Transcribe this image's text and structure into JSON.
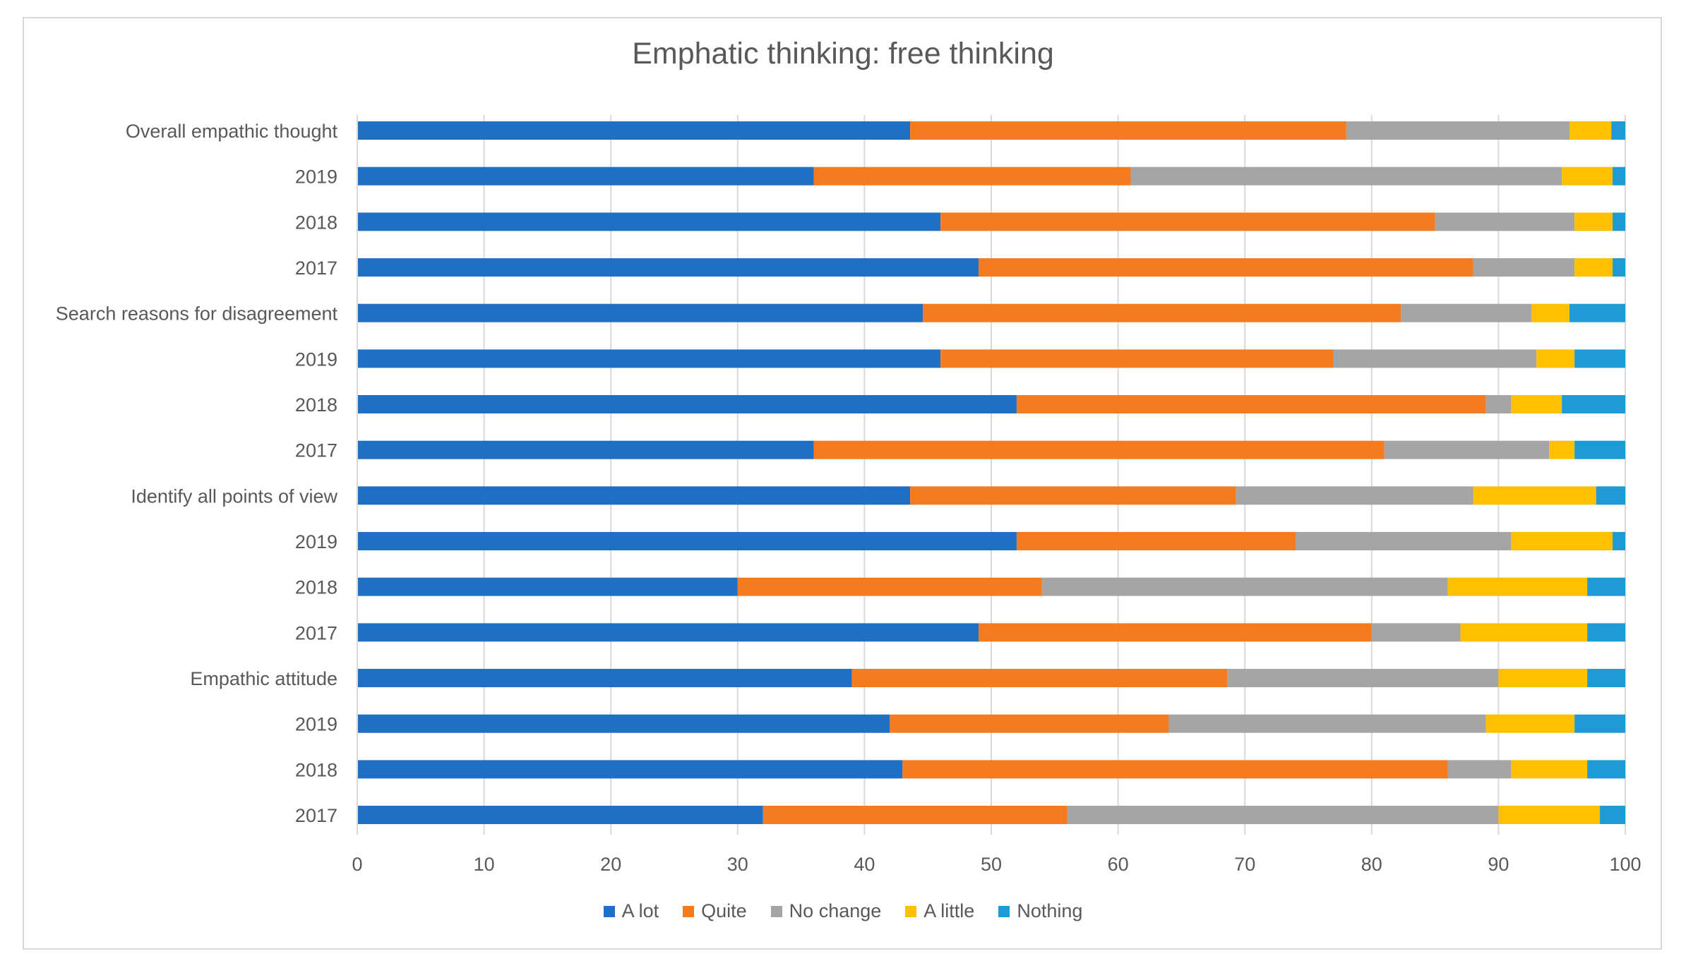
{
  "chart_data": {
    "type": "bar",
    "orientation": "horizontal",
    "stacked": true,
    "title": "Emphatic thinking: free thinking",
    "xlabel": "",
    "ylabel": "",
    "xlim": [
      0,
      100
    ],
    "xticks": [
      0,
      10,
      20,
      30,
      40,
      50,
      60,
      70,
      80,
      90,
      100
    ],
    "grid": "vertical",
    "legend_position": "bottom",
    "categories": [
      "Overall empathic thought",
      "2019",
      "2018",
      "2017",
      "Search reasons for disagreement",
      "2019",
      "2018",
      "2017",
      "Identify all points of view",
      "2019",
      "2018",
      "2017",
      "Empathic attitude",
      "2019",
      "2018",
      "2017"
    ],
    "series": [
      {
        "name": "A lot",
        "color": "#1f6fc5",
        "values": [
          43.6,
          36,
          46,
          49,
          44.6,
          46,
          52,
          36,
          43.6,
          52,
          30,
          49,
          39,
          42,
          43,
          32
        ]
      },
      {
        "name": "Quite",
        "color": "#f47b20",
        "values": [
          34.4,
          25,
          39,
          39,
          37.7,
          31,
          37,
          45,
          25.7,
          22,
          24,
          31,
          29.6,
          22,
          43,
          24
        ]
      },
      {
        "name": "No change",
        "color": "#a5a5a5",
        "values": [
          17.6,
          34,
          11,
          8,
          10.3,
          16,
          2,
          13,
          18.7,
          17,
          32,
          7,
          21.4,
          25,
          5,
          34
        ]
      },
      {
        "name": "A little",
        "color": "#ffc000",
        "values": [
          3.3,
          4,
          3,
          3,
          3,
          3,
          4,
          2,
          9.7,
          8,
          11,
          10,
          7,
          7,
          6,
          8
        ]
      },
      {
        "name": "Nothing",
        "color": "#1e9ad6",
        "values": [
          1.1,
          1,
          1,
          1,
          4.4,
          4,
          5,
          4,
          2.3,
          1,
          3,
          3,
          3,
          4,
          3,
          2
        ]
      }
    ]
  }
}
